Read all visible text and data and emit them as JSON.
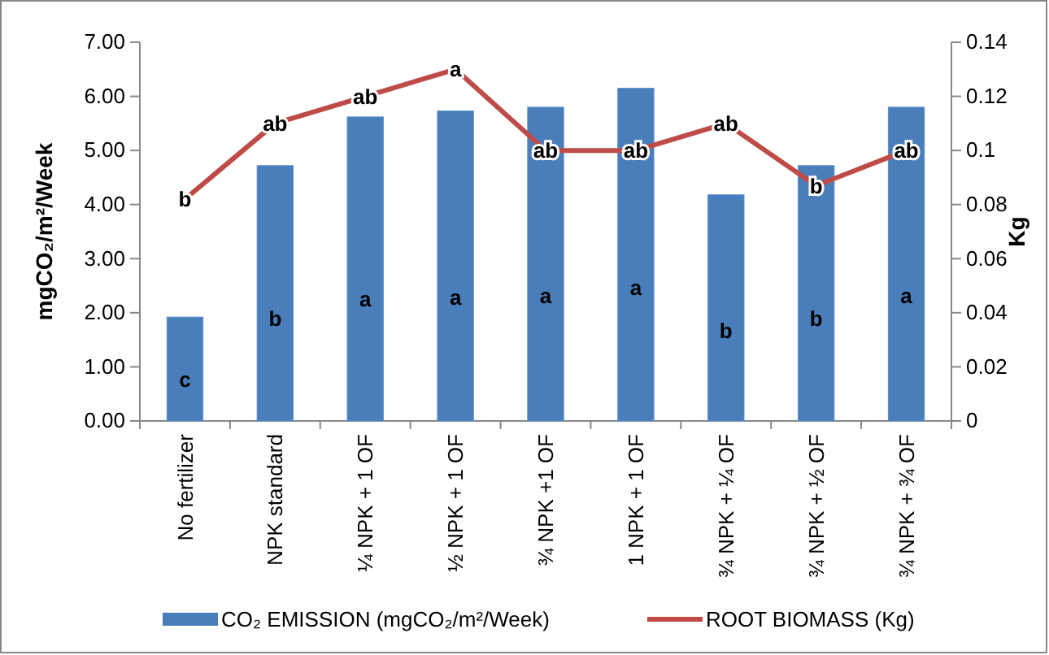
{
  "chart_data": {
    "type": "bar",
    "ylabel": "mgCO₂/m²/Week",
    "y2label": "Kg",
    "categories": [
      "No fertilizer",
      "NPK standard",
      "¼ NPK + 1 OF",
      "½ NPK + 1 OF",
      "¾ NPK +1 OF",
      "1 NPK + 1 OF",
      "¾ NPK + ¼ OF",
      "¾ NPK + ½ OF",
      "¾ NPK + ¾ OF"
    ],
    "series": [
      {
        "name": "CO₂ EMISSION (mgCO₂/m²/Week)",
        "color": "#4a7ebb",
        "values": [
          1.92,
          4.72,
          5.62,
          5.73,
          5.8,
          6.15,
          4.18,
          4.72,
          5.8
        ],
        "value_labels": [
          "c",
          "b",
          "a",
          "a",
          "a",
          "a",
          "b",
          "b",
          "a"
        ]
      },
      {
        "name": "ROOT BIOMASS (Kg)",
        "type": "line",
        "axis": "y2",
        "color": "#be4b48",
        "values": [
          0.082,
          0.11,
          0.12,
          0.13,
          0.1,
          0.1,
          0.11,
          0.087,
          0.1
        ],
        "value_labels": [
          "b",
          "ab",
          "ab",
          "a",
          "ab",
          "ab",
          "ab",
          "b",
          "ab"
        ]
      }
    ],
    "ylim": [
      0,
      7
    ],
    "yticks": [
      {
        "value": 0,
        "label": "0.00"
      },
      {
        "value": 1,
        "label": "1.00"
      },
      {
        "value": 2,
        "label": "2.00"
      },
      {
        "value": 3,
        "label": "3.00"
      },
      {
        "value": 4,
        "label": "4.00"
      },
      {
        "value": 5,
        "label": "5.00"
      },
      {
        "value": 6,
        "label": "6.00"
      },
      {
        "value": 7,
        "label": "7.00"
      }
    ],
    "y2lim": [
      0,
      0.14
    ],
    "y2ticks": [
      0,
      0.02,
      0.04,
      0.06,
      0.08,
      0.1,
      0.12,
      0.14
    ],
    "legend": "bottom",
    "grid": false,
    "marker": "none",
    "line_style": "solid"
  }
}
